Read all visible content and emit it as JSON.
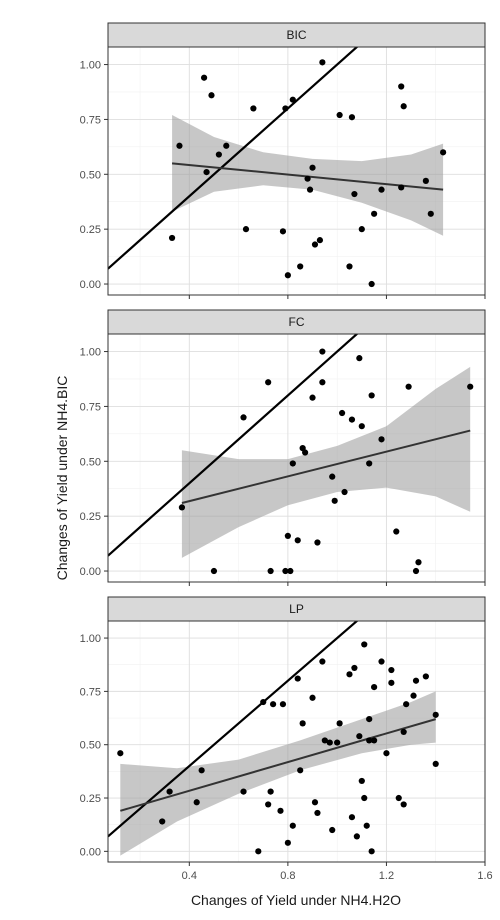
{
  "chart_data": {
    "type": "scatter",
    "xlabel": "Changes of Yield under NH4.H2O",
    "ylabel": "Changes of Yield under NH4.BIC",
    "xlim": [
      0.07,
      1.6
    ],
    "ylim": [
      -0.05,
      1.08
    ],
    "x_ticks": [
      0.4,
      0.8,
      1.2,
      1.6
    ],
    "x_tick_labels": [
      "0.4",
      "0.8",
      "1.2",
      "1.6"
    ],
    "y_ticks": [
      0,
      0.25,
      0.5,
      0.75,
      1
    ],
    "y_tick_labels": [
      "0.00",
      "0.25",
      "0.50",
      "0.75",
      "1.00"
    ],
    "grid": true,
    "reference_line": {
      "slope": 1,
      "intercept": 0
    },
    "panels": [
      {
        "strip": "BIC",
        "points": [
          [
            0.33,
            0.21
          ],
          [
            0.36,
            0.63
          ],
          [
            0.46,
            0.94
          ],
          [
            0.49,
            0.86
          ],
          [
            0.47,
            0.51
          ],
          [
            0.52,
            0.59
          ],
          [
            0.55,
            0.63
          ],
          [
            0.63,
            0.25
          ],
          [
            0.66,
            0.8
          ],
          [
            0.79,
            0.8
          ],
          [
            0.82,
            0.84
          ],
          [
            0.78,
            0.24
          ],
          [
            0.8,
            0.04
          ],
          [
            0.85,
            0.08
          ],
          [
            0.88,
            0.48
          ],
          [
            0.89,
            0.43
          ],
          [
            0.9,
            0.53
          ],
          [
            0.91,
            0.18
          ],
          [
            0.93,
            0.2
          ],
          [
            0.94,
            1.01
          ],
          [
            1.01,
            0.77
          ],
          [
            1.06,
            0.76
          ],
          [
            1.05,
            0.08
          ],
          [
            1.07,
            0.41
          ],
          [
            1.1,
            0.25
          ],
          [
            1.14,
            0.0
          ],
          [
            1.15,
            0.32
          ],
          [
            1.18,
            0.43
          ],
          [
            1.26,
            0.9
          ],
          [
            1.27,
            0.81
          ],
          [
            1.26,
            0.44
          ],
          [
            1.36,
            0.47
          ],
          [
            1.38,
            0.32
          ],
          [
            1.43,
            0.6
          ]
        ],
        "fit": {
          "x": [
            0.33,
            1.43
          ],
          "y": [
            0.55,
            0.43
          ]
        },
        "band": {
          "x": [
            0.33,
            0.5,
            0.7,
            0.9,
            1.1,
            1.3,
            1.43
          ],
          "lower": [
            0.33,
            0.42,
            0.45,
            0.43,
            0.37,
            0.29,
            0.22
          ],
          "upper": [
            0.77,
            0.67,
            0.6,
            0.57,
            0.56,
            0.59,
            0.64
          ]
        }
      },
      {
        "strip": "FC",
        "points": [
          [
            0.37,
            0.29
          ],
          [
            0.5,
            0.0
          ],
          [
            0.62,
            0.7
          ],
          [
            0.72,
            0.86
          ],
          [
            0.73,
            0.0
          ],
          [
            0.79,
            0.0
          ],
          [
            0.8,
            0.16
          ],
          [
            0.81,
            0.0
          ],
          [
            0.82,
            0.49
          ],
          [
            0.84,
            0.14
          ],
          [
            0.86,
            0.56
          ],
          [
            0.87,
            0.54
          ],
          [
            0.9,
            0.79
          ],
          [
            0.92,
            0.13
          ],
          [
            0.94,
            0.86
          ],
          [
            0.94,
            1.0
          ],
          [
            0.98,
            0.43
          ],
          [
            0.99,
            0.32
          ],
          [
            1.02,
            0.72
          ],
          [
            1.03,
            0.36
          ],
          [
            1.06,
            0.69
          ],
          [
            1.09,
            0.97
          ],
          [
            1.1,
            0.66
          ],
          [
            1.13,
            0.49
          ],
          [
            1.14,
            0.8
          ],
          [
            1.18,
            0.6
          ],
          [
            1.24,
            0.18
          ],
          [
            1.29,
            0.84
          ],
          [
            1.32,
            0.0
          ],
          [
            1.33,
            0.04
          ],
          [
            1.54,
            0.84
          ]
        ],
        "fit": {
          "x": [
            0.37,
            1.54
          ],
          "y": [
            0.31,
            0.64
          ]
        },
        "band": {
          "x": [
            0.37,
            0.6,
            0.8,
            1.0,
            1.2,
            1.4,
            1.54
          ],
          "lower": [
            0.06,
            0.2,
            0.3,
            0.36,
            0.38,
            0.34,
            0.27
          ],
          "upper": [
            0.55,
            0.51,
            0.51,
            0.57,
            0.66,
            0.83,
            0.93
          ]
        }
      },
      {
        "strip": "LP",
        "points": [
          [
            0.12,
            0.46
          ],
          [
            0.29,
            0.14
          ],
          [
            0.32,
            0.28
          ],
          [
            0.43,
            0.23
          ],
          [
            0.45,
            0.38
          ],
          [
            0.62,
            0.28
          ],
          [
            0.68,
            0.0
          ],
          [
            0.7,
            0.7
          ],
          [
            0.72,
            0.22
          ],
          [
            0.73,
            0.28
          ],
          [
            0.74,
            0.69
          ],
          [
            0.77,
            0.19
          ],
          [
            0.78,
            0.69
          ],
          [
            0.8,
            0.04
          ],
          [
            0.82,
            0.12
          ],
          [
            0.84,
            0.81
          ],
          [
            0.85,
            0.38
          ],
          [
            0.86,
            0.6
          ],
          [
            0.9,
            0.72
          ],
          [
            0.91,
            0.23
          ],
          [
            0.92,
            0.18
          ],
          [
            0.94,
            0.89
          ],
          [
            0.95,
            0.52
          ],
          [
            0.97,
            0.51
          ],
          [
            0.98,
            0.1
          ],
          [
            1.0,
            0.51
          ],
          [
            1.01,
            0.6
          ],
          [
            1.05,
            0.83
          ],
          [
            1.06,
            0.16
          ],
          [
            1.07,
            0.86
          ],
          [
            1.08,
            0.07
          ],
          [
            1.09,
            0.54
          ],
          [
            1.1,
            0.33
          ],
          [
            1.11,
            0.97
          ],
          [
            1.11,
            0.25
          ],
          [
            1.12,
            0.12
          ],
          [
            1.13,
            0.52
          ],
          [
            1.13,
            0.62
          ],
          [
            1.14,
            0.0
          ],
          [
            1.15,
            0.52
          ],
          [
            1.15,
            0.77
          ],
          [
            1.18,
            0.89
          ],
          [
            1.2,
            0.46
          ],
          [
            1.22,
            0.85
          ],
          [
            1.22,
            0.79
          ],
          [
            1.25,
            0.25
          ],
          [
            1.27,
            0.56
          ],
          [
            1.27,
            0.22
          ],
          [
            1.28,
            0.69
          ],
          [
            1.31,
            0.73
          ],
          [
            1.32,
            0.8
          ],
          [
            1.36,
            0.82
          ],
          [
            1.4,
            0.41
          ],
          [
            1.4,
            0.64
          ]
        ],
        "fit": {
          "x": [
            0.12,
            1.4
          ],
          "y": [
            0.19,
            0.62
          ]
        },
        "band": {
          "x": [
            0.12,
            0.35,
            0.6,
            0.85,
            1.1,
            1.3,
            1.4
          ],
          "lower": [
            -0.02,
            0.14,
            0.27,
            0.38,
            0.46,
            0.5,
            0.51
          ],
          "upper": [
            0.41,
            0.39,
            0.43,
            0.52,
            0.62,
            0.7,
            0.75
          ]
        }
      }
    ]
  }
}
